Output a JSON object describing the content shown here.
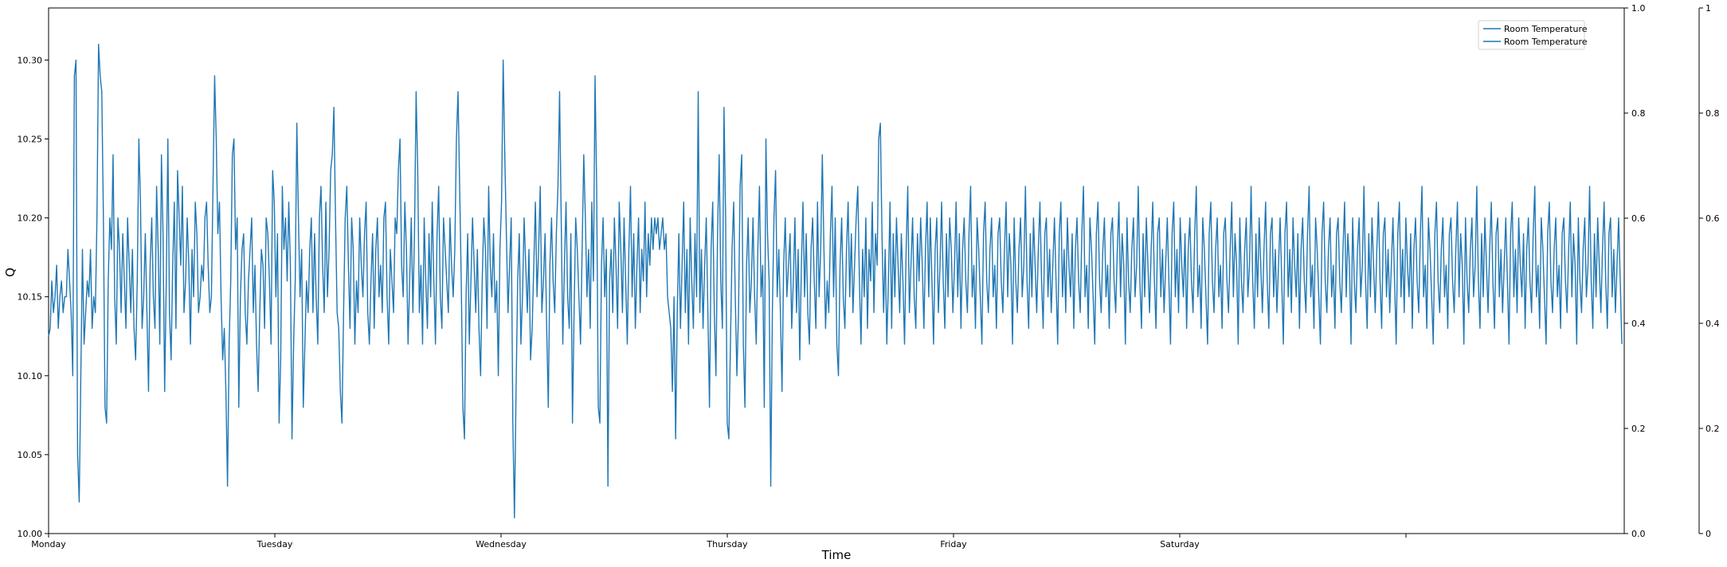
{
  "chart_data": {
    "type": "line",
    "title": "",
    "xlabel": "Time",
    "ylabel": "Q",
    "x_ticks": [
      "Monday",
      "Tuesday",
      "Wednesday",
      "Thursday",
      "Friday",
      "Saturday",
      ""
    ],
    "ylim": [
      10.0,
      10.333
    ],
    "y_ticks": [
      "10.00",
      "10.05",
      "10.10",
      "10.15",
      "10.20",
      "10.25",
      "10.30"
    ],
    "secondary_y_ticks": [
      "0.0",
      "0.2",
      "0.4",
      "0.6",
      "0.8",
      "1.0"
    ],
    "tertiary_y_ticks": [
      "0",
      "0.2",
      "0.4",
      "0.6",
      "0.8",
      "1"
    ],
    "legend": {
      "placement": "top-right",
      "entries": [
        "Room Temperature",
        "Room Temperature"
      ]
    },
    "grid": false,
    "series_color": "#1f77b4",
    "series": [
      {
        "name": "Room Temperature",
        "x_start_day": "Monday",
        "sample_count": 1000,
        "y_range_shown": [
          10.01,
          10.32
        ],
        "values": [
          10.125,
          10.13,
          10.16,
          10.14,
          10.15,
          10.17,
          10.13,
          10.15,
          10.16,
          10.14,
          10.15,
          10.15,
          10.18,
          10.16,
          10.14,
          10.1,
          10.29,
          10.3,
          10.05,
          10.02,
          10.1,
          10.18,
          10.12,
          10.14,
          10.16,
          10.15,
          10.18,
          10.13,
          10.15,
          10.14,
          10.2,
          10.31,
          10.29,
          10.28,
          10.2,
          10.08,
          10.07,
          10.16,
          10.2,
          10.18,
          10.24,
          10.15,
          10.12,
          10.2,
          10.18,
          10.14,
          10.19,
          10.16,
          10.13,
          10.2,
          10.17,
          10.14,
          10.18,
          10.13,
          10.11,
          10.16,
          10.25,
          10.21,
          10.13,
          10.15,
          10.19,
          10.14,
          10.09,
          10.17,
          10.2,
          10.15,
          10.13,
          10.22,
          10.18,
          10.12,
          10.24,
          10.19,
          10.09,
          10.16,
          10.25,
          10.14,
          10.11,
          10.17,
          10.21,
          10.13,
          10.23,
          10.2,
          10.17,
          10.22,
          10.14,
          10.16,
          10.2,
          10.17,
          10.12,
          10.18,
          10.15,
          10.21,
          10.19,
          10.14,
          10.15,
          10.17,
          10.16,
          10.2,
          10.21,
          10.17,
          10.14,
          10.15,
          10.22,
          10.29,
          10.25,
          10.19,
          10.21,
          10.15,
          10.11,
          10.13,
          10.09,
          10.03,
          10.12,
          10.16,
          10.24,
          10.25,
          10.18,
          10.2,
          10.08,
          10.15,
          10.18,
          10.19,
          10.14,
          10.12,
          10.16,
          10.18,
          10.2,
          10.14,
          10.17,
          10.12,
          10.09,
          10.14,
          10.18,
          10.17,
          10.13,
          10.2,
          10.19,
          10.16,
          10.12,
          10.23,
          10.21,
          10.15,
          10.19,
          10.07,
          10.11,
          10.22,
          10.18,
          10.2,
          10.16,
          10.21,
          10.17,
          10.06,
          10.12,
          10.16,
          10.26,
          10.2,
          10.15,
          10.18,
          10.08,
          10.12,
          10.16,
          10.14,
          10.18,
          10.2,
          10.14,
          10.19,
          10.15,
          10.12,
          10.2,
          10.22,
          10.17,
          10.14,
          10.21,
          10.15,
          10.18,
          10.23,
          10.24,
          10.27,
          10.2,
          10.14,
          10.13,
          10.09,
          10.07,
          10.14,
          10.2,
          10.22,
          10.17,
          10.13,
          10.2,
          10.18,
          10.12,
          10.16,
          10.14,
          10.2,
          10.17,
          10.15,
          10.19,
          10.21,
          10.14,
          10.12,
          10.16,
          10.19,
          10.13,
          10.18,
          10.2,
          10.15,
          10.17,
          10.14,
          10.2,
          10.21,
          10.15,
          10.12,
          10.18,
          10.16,
          10.14,
          10.2,
          10.19,
          10.23,
          10.25,
          10.17,
          10.15,
          10.21,
          10.18,
          10.12,
          10.16,
          10.2,
          10.14,
          10.19,
          10.28,
          10.23,
          10.14,
          10.17,
          10.12,
          10.2,
          10.16,
          10.13,
          10.19,
          10.15,
          10.21,
          10.16,
          10.12,
          10.19,
          10.22,
          10.15,
          10.13,
          10.2,
          10.18,
          10.16,
          10.14,
          10.2,
          10.17,
          10.15,
          10.18,
          10.25,
          10.28,
          10.22,
          10.16,
          10.08,
          10.06,
          10.15,
          10.19,
          10.12,
          10.16,
          10.2,
          10.17,
          10.14,
          10.18,
          10.13,
          10.1,
          10.16,
          10.2,
          10.18,
          10.13,
          10.22,
          10.17,
          10.15,
          10.19,
          10.14,
          10.16,
          10.1,
          10.18,
          10.21,
          10.3,
          10.24,
          10.19,
          10.14,
          10.17,
          10.2,
          10.07,
          10.01,
          10.09,
          10.16,
          10.19,
          10.12,
          10.15,
          10.2,
          10.17,
          10.14,
          10.18,
          10.11,
          10.13,
          10.17,
          10.21,
          10.15,
          10.18,
          10.22,
          10.14,
          10.16,
          10.19,
          10.13,
          10.08,
          10.17,
          10.2,
          10.16,
          10.14,
          10.19,
          10.22,
          10.28,
          10.2,
          10.12,
          10.17,
          10.21,
          10.15,
          10.13,
          10.19,
          10.07,
          10.14,
          10.2,
          10.18,
          10.15,
          10.12,
          10.18,
          10.24,
          10.2,
          10.15,
          10.18,
          10.13,
          10.21,
          10.16,
          10.29,
          10.22,
          10.08,
          10.07,
          10.17,
          10.2,
          10.15,
          10.18,
          10.03,
          10.16,
          10.18,
          10.14,
          10.2,
          10.17,
          10.13,
          10.21,
          10.18,
          10.14,
          10.2,
          10.16,
          10.12,
          10.18,
          10.22,
          10.15,
          10.19,
          10.13,
          10.17,
          10.2,
          10.14,
          10.18,
          10.16,
          10.21,
          10.15,
          10.19,
          10.17,
          10.2,
          10.18,
          10.2,
          10.19,
          10.2,
          10.18,
          10.19,
          10.2,
          10.18,
          10.19,
          10.15,
          10.14,
          10.13,
          10.09,
          10.15,
          10.06,
          10.14,
          10.19,
          10.13,
          10.17,
          10.21,
          10.14,
          10.18,
          10.12,
          10.2,
          10.16,
          10.13,
          10.19,
          10.15,
          10.28,
          10.14,
          10.18,
          10.13,
          10.17,
          10.2,
          10.14,
          10.08,
          10.18,
          10.21,
          10.14,
          10.1,
          10.19,
          10.24,
          10.16,
          10.13,
          10.27,
          10.2,
          10.07,
          10.06,
          10.12,
          10.18,
          10.21,
          10.15,
          10.1,
          10.14,
          10.22,
          10.24,
          10.12,
          10.08,
          10.17,
          10.2,
          10.14,
          10.16,
          10.2,
          10.15,
          10.12,
          10.18,
          10.22,
          10.15,
          10.17,
          10.08,
          10.25,
          10.19,
          10.16,
          10.03,
          10.14,
          10.2,
          10.23,
          10.15,
          10.18,
          10.14,
          10.09,
          10.17,
          10.2,
          10.15,
          10.17,
          10.19,
          10.13,
          10.16,
          10.2,
          10.14,
          10.18,
          10.11,
          10.17,
          10.21,
          10.15,
          10.19,
          10.14,
          10.12,
          10.18,
          10.2,
          10.16,
          10.13,
          10.21,
          10.15,
          10.18,
          10.24,
          10.18,
          10.13,
          10.16,
          10.14,
          10.19,
          10.22,
          10.15,
          10.2,
          10.12,
          10.1,
          10.17,
          10.2,
          10.15,
          10.13,
          10.18,
          10.21,
          10.15,
          10.19,
          10.14,
          10.17,
          10.2,
          10.22,
          10.16,
          10.12,
          10.18,
          10.15,
          10.2,
          10.13,
          10.18,
          10.16,
          10.21,
          10.14,
          10.19,
          10.17,
          10.25,
          10.26,
          10.19,
          10.14,
          10.18,
          10.12,
          10.16,
          10.21,
          10.13,
          10.19,
          10.15,
          10.2,
          10.17,
          10.14,
          10.19,
          10.16,
          10.12,
          10.18,
          10.22,
          10.14,
          10.17,
          10.2,
          10.15,
          10.13,
          10.19,
          10.16,
          10.2,
          10.17,
          10.13,
          10.18,
          10.21,
          10.15,
          10.2,
          10.16,
          10.12,
          10.18,
          10.2,
          10.14,
          10.17,
          10.21,
          10.16,
          10.13,
          10.19,
          10.15,
          10.2,
          10.18,
          10.14,
          10.17,
          10.21,
          10.15,
          10.19,
          10.13,
          10.18,
          10.2,
          10.16,
          10.14,
          10.19,
          10.22,
          10.15,
          10.17,
          10.13,
          10.2,
          10.18,
          10.15,
          10.12,
          10.19,
          10.21,
          10.16,
          10.14,
          10.18,
          10.2,
          10.15,
          10.17,
          10.13,
          10.19,
          10.2,
          10.16,
          10.14,
          10.18,
          10.21,
          10.15,
          10.19,
          10.17,
          10.12,
          10.2,
          10.16,
          10.14,
          10.18,
          10.2,
          10.15,
          10.17,
          10.22,
          10.16,
          10.13,
          10.19,
          10.15,
          10.2,
          10.17,
          10.14,
          10.18,
          10.21,
          10.16,
          10.13,
          10.19,
          10.2,
          10.15,
          10.18,
          10.14,
          10.17,
          10.2,
          10.16,
          10.12,
          10.19,
          10.21,
          10.15,
          10.18,
          10.14,
          10.2,
          10.17,
          10.15,
          10.19,
          10.13,
          10.18,
          10.2,
          10.16,
          10.14,
          10.19,
          10.22,
          10.15,
          10.17,
          10.13,
          10.2,
          10.18,
          10.15,
          10.12,
          10.19,
          10.21,
          10.16,
          10.14,
          10.18,
          10.2,
          10.15,
          10.17,
          10.13,
          10.19,
          10.2,
          10.16,
          10.14,
          10.18,
          10.21,
          10.15,
          10.19,
          10.17,
          10.12,
          10.2,
          10.16,
          10.14,
          10.18,
          10.2,
          10.15,
          10.17,
          10.22,
          10.16,
          10.13,
          10.19,
          10.15,
          10.2,
          10.17,
          10.14,
          10.18,
          10.21,
          10.16,
          10.13,
          10.19,
          10.2,
          10.15,
          10.18,
          10.14,
          10.17,
          10.2,
          10.16,
          10.12,
          10.19,
          10.21,
          10.15,
          10.18,
          10.14,
          10.2,
          10.17,
          10.15,
          10.19,
          10.13,
          10.18,
          10.2,
          10.16,
          10.14,
          10.19,
          10.22,
          10.15,
          10.17,
          10.13,
          10.2,
          10.18,
          10.15,
          10.12,
          10.19,
          10.21,
          10.16,
          10.14,
          10.18,
          10.2,
          10.15,
          10.17,
          10.13,
          10.19,
          10.2,
          10.16,
          10.14,
          10.18,
          10.21,
          10.15,
          10.19,
          10.17,
          10.12,
          10.2,
          10.16,
          10.14,
          10.18,
          10.2,
          10.15,
          10.17,
          10.22,
          10.16,
          10.13,
          10.19,
          10.15,
          10.2,
          10.17,
          10.14,
          10.18,
          10.21,
          10.16,
          10.13,
          10.19,
          10.2,
          10.15,
          10.18,
          10.14,
          10.17,
          10.2,
          10.16,
          10.12,
          10.19,
          10.21,
          10.15,
          10.18,
          10.14,
          10.2,
          10.17,
          10.15,
          10.19,
          10.13,
          10.18,
          10.2,
          10.16,
          10.14,
          10.19,
          10.22,
          10.15,
          10.17,
          10.13,
          10.2,
          10.18,
          10.15,
          10.12,
          10.19,
          10.21,
          10.16,
          10.14,
          10.18,
          10.2,
          10.15,
          10.17,
          10.13,
          10.19,
          10.2,
          10.16,
          10.14,
          10.18,
          10.21,
          10.15,
          10.19,
          10.17,
          10.12,
          10.2,
          10.16,
          10.14,
          10.18,
          10.2,
          10.15,
          10.17,
          10.22,
          10.16,
          10.13,
          10.19,
          10.15,
          10.2,
          10.17,
          10.14,
          10.18,
          10.21,
          10.16,
          10.13,
          10.19,
          10.2,
          10.15,
          10.18,
          10.14,
          10.17,
          10.2,
          10.16,
          10.12,
          10.19,
          10.21,
          10.15,
          10.18,
          10.14,
          10.2,
          10.17,
          10.15,
          10.19,
          10.13,
          10.18,
          10.2,
          10.16,
          10.14,
          10.19,
          10.22,
          10.15,
          10.17,
          10.13,
          10.2,
          10.18,
          10.15,
          10.12,
          10.19,
          10.21,
          10.16,
          10.14,
          10.18,
          10.2,
          10.15,
          10.17,
          10.13,
          10.19,
          10.2,
          10.16,
          10.14,
          10.18,
          10.21,
          10.15,
          10.19,
          10.17,
          10.12,
          10.2,
          10.16,
          10.14,
          10.18,
          10.2,
          10.15,
          10.17,
          10.22,
          10.16,
          10.13,
          10.19,
          10.15,
          10.2,
          10.17,
          10.14,
          10.18,
          10.21,
          10.16,
          10.13,
          10.19,
          10.2,
          10.15,
          10.18,
          10.14,
          10.17,
          10.2,
          10.16,
          10.12,
          10.19,
          10.21,
          10.15,
          10.18,
          10.14,
          10.2,
          10.17,
          10.15,
          10.19,
          10.13,
          10.18,
          10.2,
          10.16,
          10.14,
          10.19,
          10.22,
          10.15,
          10.17,
          10.13,
          10.2,
          10.18,
          10.15,
          10.12,
          10.19,
          10.21,
          10.16,
          10.14,
          10.18,
          10.2,
          10.15,
          10.17,
          10.13,
          10.19,
          10.2,
          10.16,
          10.14,
          10.18,
          10.21,
          10.15,
          10.19,
          10.17,
          10.12,
          10.2,
          10.16,
          10.14,
          10.18,
          10.2,
          10.15,
          10.17,
          10.22,
          10.16,
          10.13,
          10.19,
          10.15,
          10.2,
          10.17,
          10.14,
          10.18,
          10.21,
          10.16,
          10.13,
          10.19,
          10.2,
          10.15,
          10.18,
          10.14,
          10.17,
          10.2,
          10.16,
          10.12
        ]
      }
    ]
  }
}
